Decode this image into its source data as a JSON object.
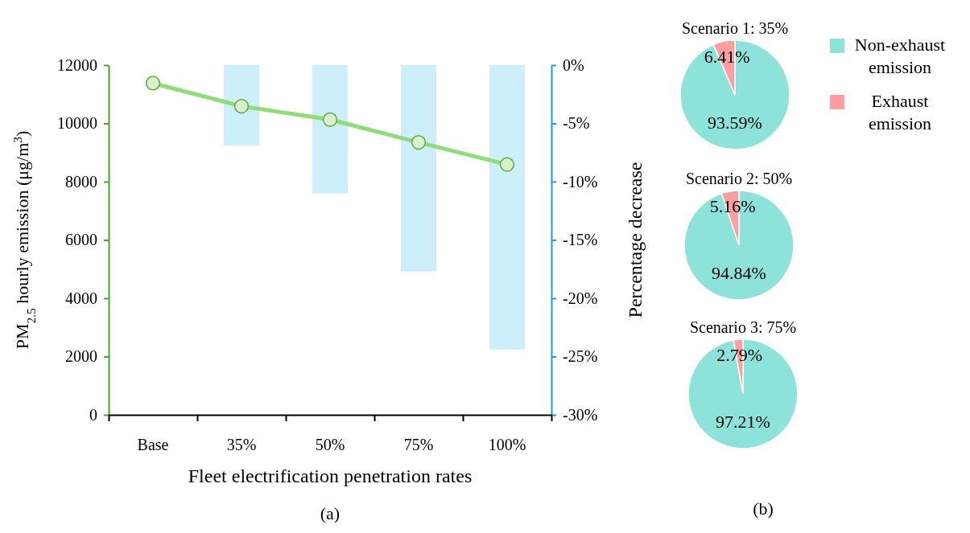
{
  "chart_data": [
    {
      "type": "line",
      "xlabel": "Fleet electrification penetration rates",
      "ylabel": "PM$_{2.5}$ hourly emission (μg/m$^{3}$)",
      "y2label": "Percentage decrease",
      "categories": [
        "Base",
        "35%",
        "50%",
        "75%",
        "100%"
      ],
      "series": [
        {
          "type": "bar",
          "axis": "y2",
          "color": "#cdeefb",
          "values": [
            null,
            -6.9,
            -11.0,
            -17.7,
            -24.4
          ]
        },
        {
          "type": "line",
          "color": "#8fdc78",
          "values": [
            11380,
            10590,
            10130,
            9350,
            8590
          ]
        }
      ],
      "marker": "circle",
      "ylim": [
        0,
        12000
      ],
      "yticks": [
        0,
        2000,
        4000,
        6000,
        8000,
        10000,
        12000
      ],
      "y2lim": [
        -30,
        0
      ],
      "y2ticks": [
        {
          "value": 0,
          "label": "0%"
        },
        {
          "value": -5,
          "label": "-5%"
        },
        {
          "value": -10,
          "label": "-10%"
        },
        {
          "value": -15,
          "label": "-15%"
        },
        {
          "value": -20,
          "label": "-20%"
        },
        {
          "value": -25,
          "label": "-25%"
        },
        {
          "value": -30,
          "label": "-30%"
        }
      ],
      "annotations": [
        "(a)"
      ]
    },
    {
      "type": "pie",
      "title": "Scenario 1: 35%",
      "categories": [
        "Non-exhaust emission",
        "Exhaust emission"
      ],
      "values": [
        93.59,
        6.41
      ],
      "colors": [
        "#8de3d9",
        "#ff9e9e"
      ],
      "value_labels": [
        "93.59%",
        "6.41%"
      ],
      "legend": "right"
    },
    {
      "type": "pie",
      "title": "Scenario 2: 50%",
      "categories": [
        null,
        null
      ],
      "values": [
        94.84,
        5.16
      ],
      "colors": [
        "#8de3d9",
        "#ff9e9e"
      ],
      "value_labels": [
        "94.84%",
        "5.16%"
      ]
    },
    {
      "type": "pie",
      "title": "Scenario 3: 75%",
      "categories": [
        null,
        null
      ],
      "values": [
        97.21,
        2.79
      ],
      "colors": [
        "#8de3d9",
        "#ff9e9e"
      ],
      "value_labels": [
        "97.21%",
        "2.79%"
      ],
      "annotations": [
        "(b)"
      ]
    }
  ]
}
